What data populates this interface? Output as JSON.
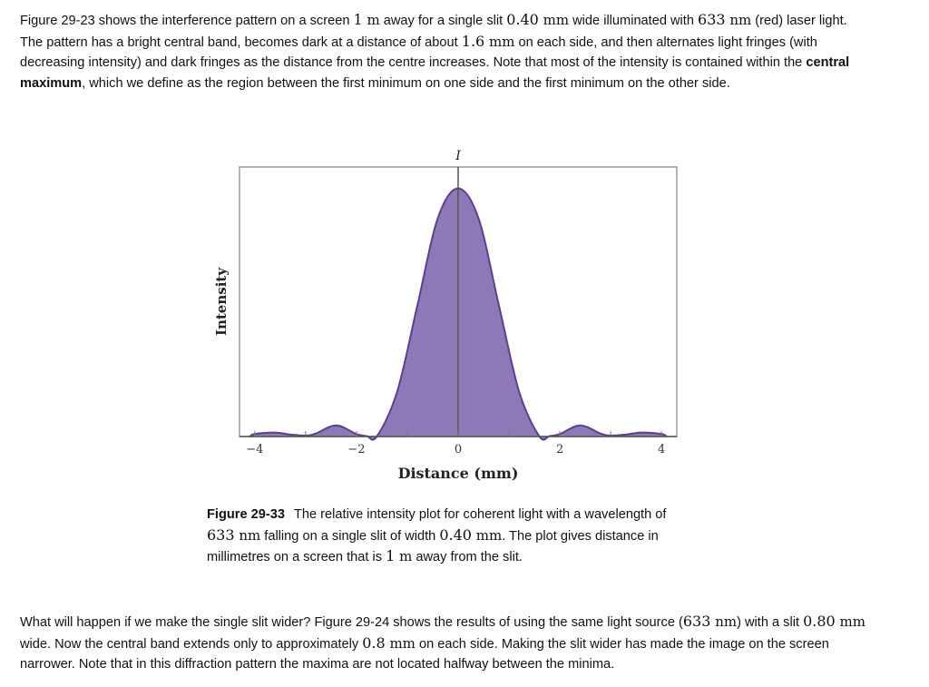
{
  "paragraph1": {
    "t1": "Figure 29-23 shows the interference pattern on a screen ",
    "v1": "1",
    "u1": "m",
    "t2": " away for a single slit ",
    "v2": "0.40",
    "u2": "mm",
    "t3": " wide illuminated with ",
    "v3": "633",
    "u3": "nm",
    "t4": " (red) laser light. The pattern has a bright central band, becomes dark at a distance of about ",
    "v4": "1.6",
    "u4": "mm",
    "t5": " on each side, and then alternates light fringes (with decreasing intensity) and dark fringes as the distance from the centre increases. Note that most of the intensity is contained within the ",
    "bold": "central maximum",
    "t6": ", which we define as the region between the first minimum on one side and the first minimum on the other side."
  },
  "caption": {
    "label": "Figure 29-33",
    "t1": "The relative intensity plot for coherent light with a wavelength of ",
    "v1": "633",
    "u1": "nm",
    "t2": " falling on a single slit of width ",
    "v2": "0.40",
    "u2": "mm",
    "t3": ". The plot gives distance in millimetres on a screen that is ",
    "v3": "1",
    "u3": "m",
    "t4": " away from the slit."
  },
  "paragraph2": {
    "t1": "What will happen if we make the single slit wider? Figure 29-24 shows the results of using the same light source (",
    "v1": "633",
    "u1": "nm",
    "t2": ") with a slit ",
    "v2": "0.80",
    "u2": "mm",
    "t3": " wide. Now the central band extends only to approximately ",
    "v3": "0.8",
    "u3": "mm",
    "t4": " on each side. Making the slit wider has made the image on the screen narrower. Note that in this diffraction pattern the maxima are not located halfway between the minima."
  },
  "chart_data": {
    "type": "area",
    "title": "",
    "xlabel": "Distance (mm)",
    "ylabel": "Intensity",
    "y_axis_marker": "I",
    "xlim": [
      -4.3,
      4.3
    ],
    "ylim": [
      0,
      1.05
    ],
    "x_ticks": [
      -4,
      -2,
      0,
      2,
      4
    ],
    "x_tick_labels": [
      "−4",
      "−2",
      "0",
      "2",
      "4"
    ],
    "grid": false,
    "fill_color": "#8e79b8",
    "stroke_color": "#5b3f91",
    "series": [
      {
        "x": [
          -4.1,
          -4.0,
          -3.6,
          -3.3,
          -3.0,
          -2.8,
          -2.4,
          -2.0,
          -1.8,
          -1.6,
          -1.2,
          -0.8,
          -0.4,
          0.0,
          0.4,
          0.8,
          1.2,
          1.6,
          1.8,
          2.0,
          2.4,
          2.8,
          3.0,
          3.3,
          3.6,
          4.0,
          4.1
        ],
        "values": [
          0.0,
          0.01,
          0.016,
          0.008,
          0.004,
          0.012,
          0.045,
          0.01,
          0.002,
          0.0,
          0.18,
          0.53,
          0.88,
          1.0,
          0.88,
          0.53,
          0.18,
          0.0,
          0.002,
          0.01,
          0.045,
          0.012,
          0.004,
          0.008,
          0.016,
          0.01,
          0.0
        ]
      }
    ]
  }
}
